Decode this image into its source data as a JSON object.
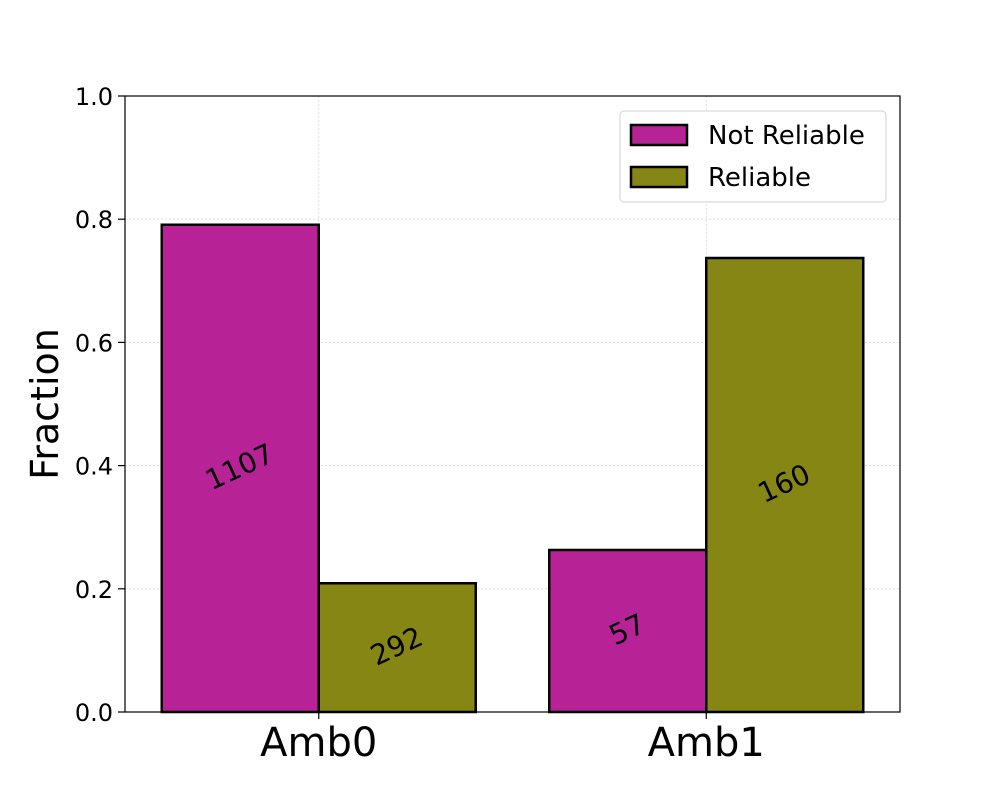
{
  "chart_data": {
    "type": "bar",
    "categories": [
      "Amb0",
      "Amb1"
    ],
    "series": [
      {
        "name": "Not Reliable",
        "color": "#b72396",
        "values": [
          0.791,
          0.263
        ],
        "labels": [
          "1107",
          "57"
        ]
      },
      {
        "name": "Reliable",
        "color": "#868614",
        "values": [
          0.209,
          0.737
        ],
        "labels": [
          "292",
          "160"
        ]
      }
    ],
    "title": "",
    "xlabel": "",
    "ylabel": "Fraction",
    "ylim": [
      0,
      1.0
    ],
    "yticks": [
      "0.0",
      "0.2",
      "0.4",
      "0.6",
      "0.8",
      "1.0"
    ],
    "grid": true,
    "legend_position": "top-right"
  }
}
